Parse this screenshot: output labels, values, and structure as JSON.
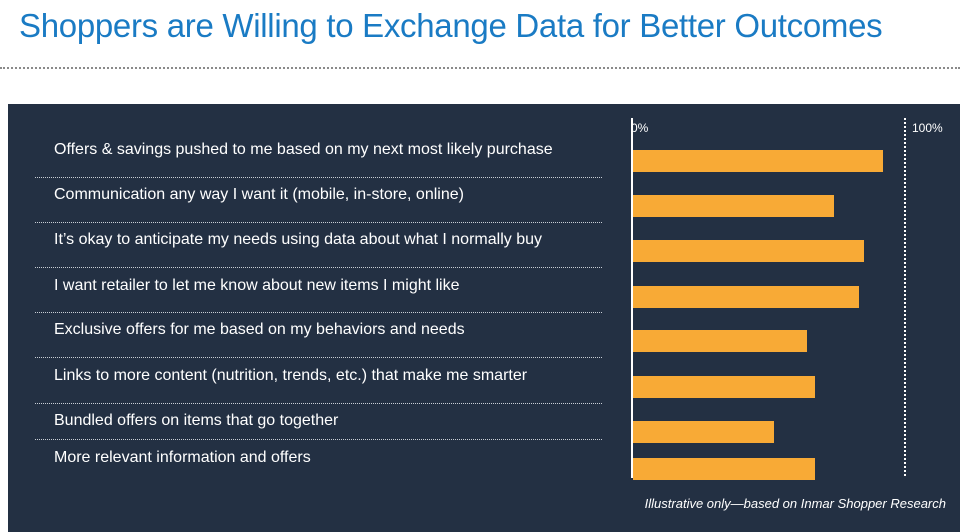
{
  "title": "Shoppers are Willing to Exchange Data for Better Outcomes",
  "footnote": "Illustrative only—based on Inmar Shopper Research",
  "colors": {
    "title": "#1a7bc4",
    "panel": "#233043",
    "bar": "#f8aa36",
    "text": "#ffffff"
  },
  "chart_data": {
    "type": "bar",
    "orientation": "horizontal",
    "categories": [
      "Offers & savings pushed to me based on my next most likely purchase",
      "Communication any way I want it (mobile, in-store, online)",
      "It’s okay to anticipate my needs using data about what I normally buy",
      "I want retailer to let me know about new items I might like",
      "Exclusive offers for me based on my behaviors and needs",
      "Links to more content (nutrition, trends, etc.) that make me smarter",
      "Bundled offers on items that go together",
      "More relevant information and offers"
    ],
    "values": [
      92,
      74,
      85,
      83,
      64,
      67,
      52,
      67
    ],
    "xlim": [
      0,
      100
    ],
    "tick_labels": [
      "0%",
      "100%"
    ],
    "grid": false
  }
}
